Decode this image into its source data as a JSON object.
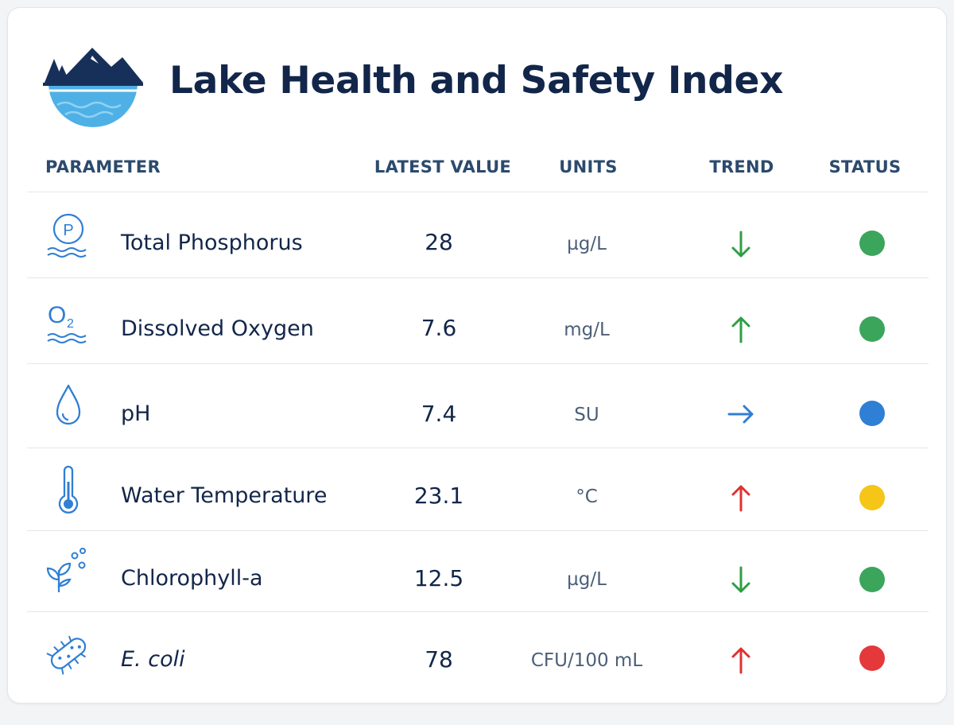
{
  "title": "Lake Health and Safety Index",
  "colors": {
    "navy": "#12264a",
    "header": "#2b4a6e",
    "icon_blue": "#2f7fd4",
    "trend_green": "#2f9e44",
    "trend_red": "#e03131",
    "trend_blue": "#2f7fd4"
  },
  "table": {
    "headers": {
      "parameter": "PARAMETER",
      "latest_value": "LATEST VALUE",
      "units": "UNITS",
      "trend": "TREND",
      "status": "STATUS"
    },
    "rows": [
      {
        "icon": "phosphorus-icon",
        "name": "Total Phosphorus",
        "value": "28",
        "unit": "µg/L",
        "trend": "down",
        "trend_color": "#2f9e44",
        "status": "green",
        "status_color": "#3ba55c",
        "italic": false
      },
      {
        "icon": "oxygen-icon",
        "name": "Dissolved Oxygen",
        "value": "7.6",
        "unit": "mg/L",
        "trend": "up",
        "trend_color": "#2f9e44",
        "status": "green",
        "status_color": "#3ba55c",
        "italic": false
      },
      {
        "icon": "water-drop-icon",
        "name": "pH",
        "value": "7.4",
        "unit": "SU",
        "trend": "right",
        "trend_color": "#2f7fd4",
        "status": "blue",
        "status_color": "#2f7fd4",
        "italic": false
      },
      {
        "icon": "thermometer-icon",
        "name": "Water Temperature",
        "value": "23.1",
        "unit": "°C",
        "trend": "up",
        "trend_color": "#e03131",
        "status": "yellow",
        "status_color": "#f5c518",
        "italic": false
      },
      {
        "icon": "plant-icon",
        "name": "Chlorophyll-a",
        "value": "12.5",
        "unit": "µg/L",
        "trend": "down",
        "trend_color": "#2f9e44",
        "status": "green",
        "status_color": "#3ba55c",
        "italic": false
      },
      {
        "icon": "bacteria-icon",
        "name": "E. coli",
        "value": "78",
        "unit": "CFU/100 mL",
        "trend": "up",
        "trend_color": "#e03131",
        "status": "red",
        "status_color": "#e5383b",
        "italic": true
      }
    ]
  }
}
